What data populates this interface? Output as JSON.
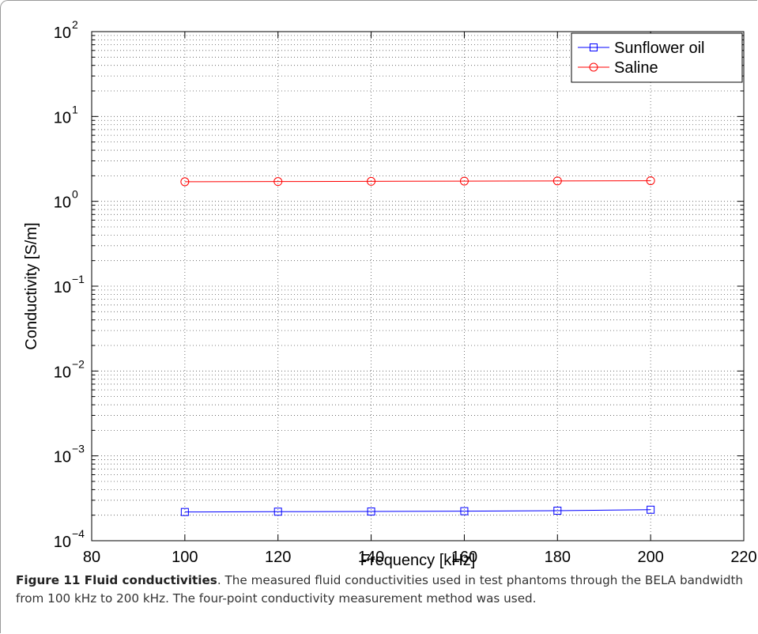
{
  "chart_data": {
    "type": "line",
    "xlabel": "Frequency [kHz]",
    "ylabel": "Conductivity [S/m]",
    "xlim": [
      80,
      220
    ],
    "ylim": [
      0.0001,
      100
    ],
    "yscale": "log",
    "x_ticks": [
      "80",
      "100",
      "120",
      "140",
      "160",
      "180",
      "200",
      "220"
    ],
    "y_ticks": [
      {
        "base": "10",
        "exp": "2"
      },
      {
        "base": "10",
        "exp": "1"
      },
      {
        "base": "10",
        "exp": "0"
      },
      {
        "base": "10",
        "exp": "−1"
      },
      {
        "base": "10",
        "exp": "−2"
      },
      {
        "base": "10",
        "exp": "−3"
      },
      {
        "base": "10",
        "exp": "−4"
      }
    ],
    "grid": true,
    "legend_position": "top-right",
    "x": [
      100,
      120,
      140,
      160,
      180,
      200
    ],
    "series": [
      {
        "name": "Sunflower oil",
        "color": "#0000ff",
        "marker": "square",
        "values": [
          0.000218,
          0.00022,
          0.000221,
          0.000223,
          0.000226,
          0.000232
        ]
      },
      {
        "name": "Saline",
        "color": "#ff0000",
        "marker": "circle",
        "values": [
          1.7,
          1.71,
          1.72,
          1.73,
          1.74,
          1.75
        ]
      }
    ]
  },
  "caption": {
    "label": "Figure 11 Fluid conductivities",
    "text": ". The measured fluid conductivities used in test phantoms through the BELA bandwidth from 100 kHz to 200 kHz. The four-point conductivity measurement method was used."
  }
}
